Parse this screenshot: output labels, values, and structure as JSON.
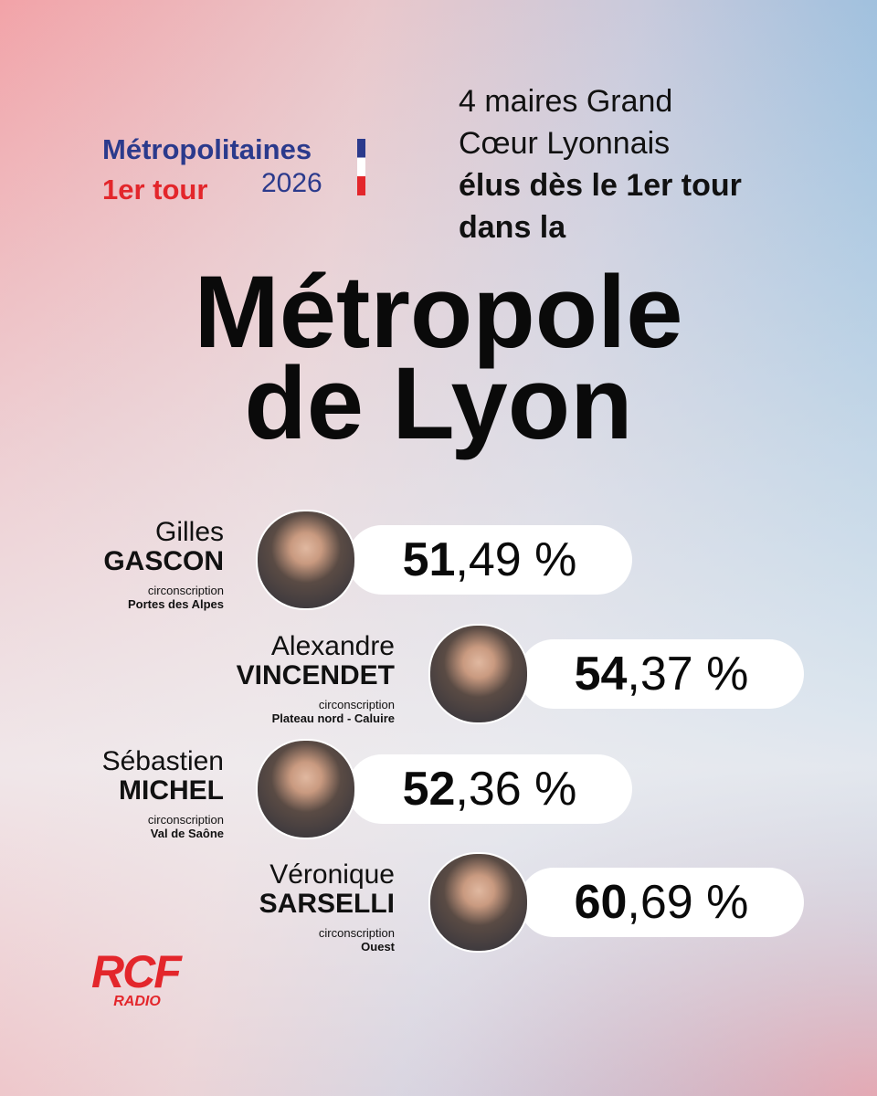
{
  "header": {
    "brand_line1": "Métropolitaines",
    "brand_line2": "1er tour",
    "brand_year": "2026",
    "headline": [
      "4 maires Grand",
      "Cœur Lyonnais",
      "élus dès le 1er tour",
      "dans la"
    ],
    "title": [
      "Métropole",
      "de Lyon"
    ]
  },
  "candidates": [
    {
      "first_name": "Gilles",
      "last_name": "GASCON",
      "label": "circonscription",
      "district": "Portes des Alpes",
      "percent_integer": "51",
      "percent_rest": ",49 %"
    },
    {
      "first_name": "Alexandre",
      "last_name": "VINCENDET",
      "label": "circonscription",
      "district": "Plateau nord - Caluire",
      "percent_integer": "54",
      "percent_rest": ",37 %"
    },
    {
      "first_name": "Sébastien",
      "last_name": "MICHEL",
      "label": "circonscription",
      "district": "Val de Saône",
      "percent_integer": "52",
      "percent_rest": ",36 %"
    },
    {
      "first_name": "Véronique",
      "last_name": "SARSELLI",
      "label": "circonscription",
      "district": "Ouest",
      "percent_integer": "60",
      "percent_rest": ",69 %"
    }
  ],
  "logo": {
    "name": "RCF",
    "sub": "RADIO"
  }
}
